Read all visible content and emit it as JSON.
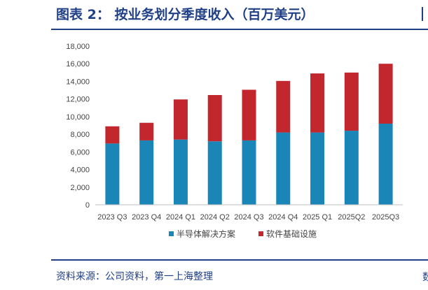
{
  "header": {
    "title": "图表 2：  按业务划分季度收入（百万美元）"
  },
  "footer": {
    "source": "资料来源：公司资料，第一上海整理",
    "right_mark": "数"
  },
  "colors": {
    "series1": "#1a86b8",
    "series2": "#c1272d",
    "accent": "#1f3f87"
  },
  "chart_data": {
    "type": "bar",
    "stacked": true,
    "categories": [
      "2023 Q3",
      "2023 Q4",
      "2024 Q1",
      "2024 Q2",
      "2024 Q3",
      "2024 Q4",
      "2025 Q1",
      "2025Q2",
      "2025Q3"
    ],
    "series": [
      {
        "name": "半导体解决方案",
        "values": [
          6950,
          7300,
          7400,
          7200,
          7300,
          8200,
          8200,
          8400,
          9200
        ]
      },
      {
        "name": "软件基础设施",
        "values": [
          1950,
          2000,
          4550,
          5250,
          5750,
          5850,
          6700,
          6600,
          6800
        ]
      }
    ],
    "yticks": [
      "0",
      "2,000",
      "4,000",
      "6,000",
      "8,000",
      "10,000",
      "12,000",
      "14,000",
      "16,000",
      "18,000"
    ],
    "ylim": [
      0,
      18000
    ],
    "grid": false,
    "legend_position": "bottom",
    "title": "",
    "xlabel": "",
    "ylabel": ""
  }
}
